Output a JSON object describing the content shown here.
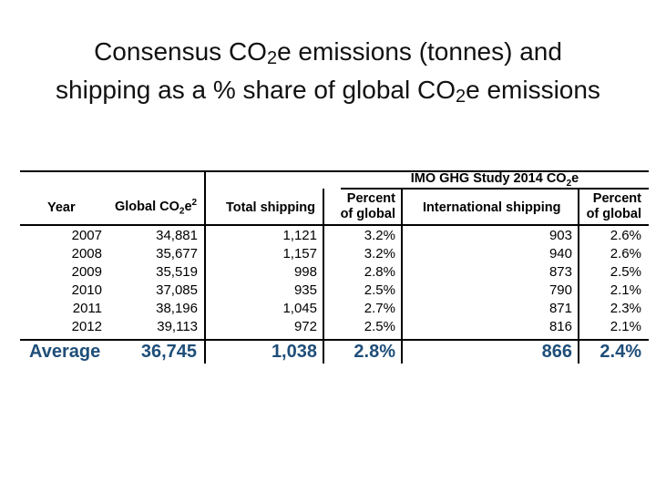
{
  "title": {
    "line1_before": "Consensus CO",
    "line1_sub": "2",
    "line1_after": "e emissions (tonnes) and",
    "line2_before": "shipping as a % share of global CO",
    "line2_sub": "2",
    "line2_after": "e emissions"
  },
  "table": {
    "group_header_text": "IMO GHG Study 2014 CO",
    "group_header_sub": "2",
    "group_header_end": "e",
    "headers": {
      "year": "Year",
      "global_before": "Global CO",
      "global_sub": "2",
      "global_mid": "e",
      "global_sup": "2",
      "total_shipping": "Total shipping",
      "percent1_line1": "Percent",
      "percent1_line2": "of global",
      "international": "International shipping",
      "percent2_line1": "Percent",
      "percent2_line2": "of global"
    },
    "rows": [
      {
        "year": "2007",
        "global": "34,881",
        "total": "1,121",
        "pct_total": "3.2%",
        "intl": "903",
        "pct_intl": "2.6%"
      },
      {
        "year": "2008",
        "global": "35,677",
        "total": "1,157",
        "pct_total": "3.2%",
        "intl": "940",
        "pct_intl": "2.6%"
      },
      {
        "year": "2009",
        "global": "35,519",
        "total": "998",
        "pct_total": "2.8%",
        "intl": "873",
        "pct_intl": "2.5%"
      },
      {
        "year": "2010",
        "global": "37,085",
        "total": "935",
        "pct_total": "2.5%",
        "intl": "790",
        "pct_intl": "2.1%"
      },
      {
        "year": "2011",
        "global": "38,196",
        "total": "1,045",
        "pct_total": "2.7%",
        "intl": "871",
        "pct_intl": "2.3%"
      },
      {
        "year": "2012",
        "global": "39,113",
        "total": "972",
        "pct_total": "2.5%",
        "intl": "816",
        "pct_intl": "2.1%"
      }
    ],
    "average": {
      "label": "Average",
      "global": "36,745",
      "total": "1,038",
      "pct_total": "2.8%",
      "intl": "866",
      "pct_intl": "2.4%"
    }
  },
  "colors": {
    "average_text": "#1f4e79"
  }
}
